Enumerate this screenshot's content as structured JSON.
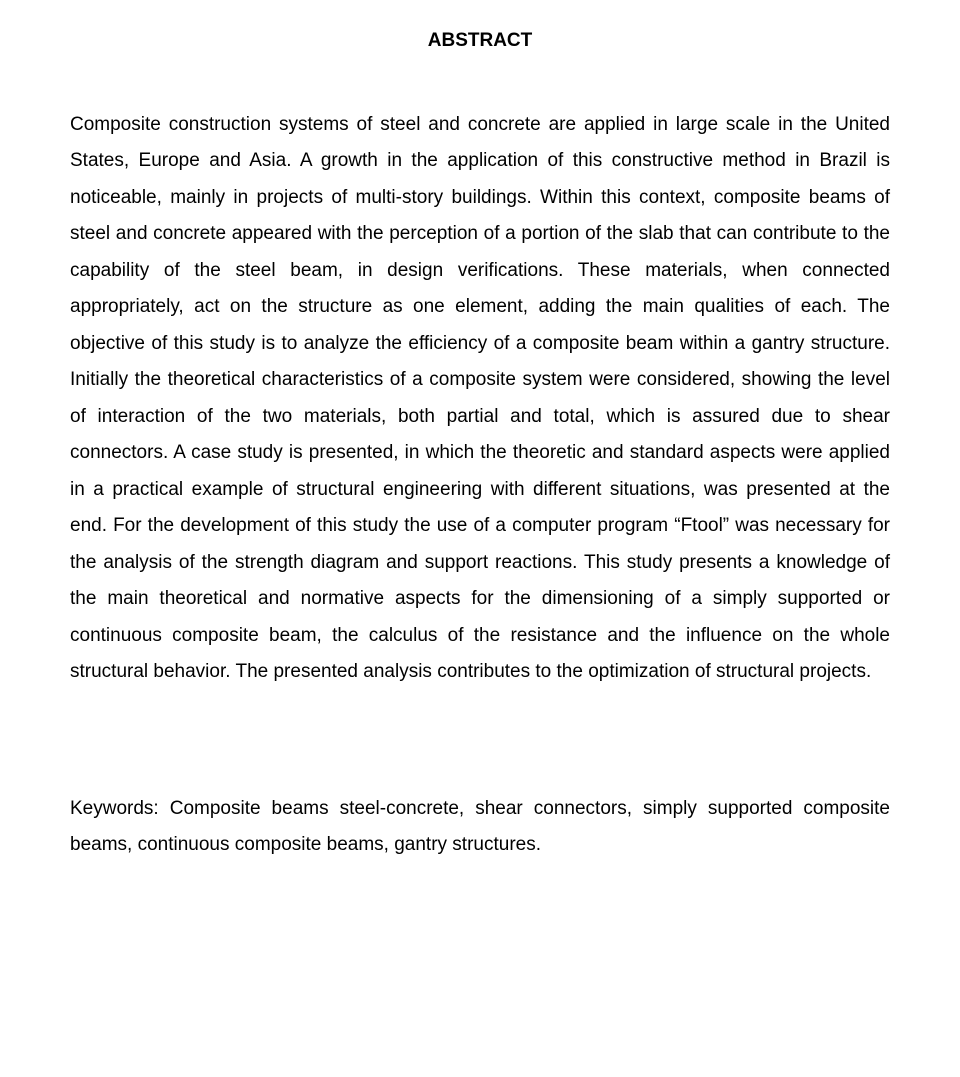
{
  "title": "ABSTRACT",
  "body": "Composite construction systems of steel and concrete are applied in large scale in the United States, Europe and Asia. A growth in the application of this constructive method in Brazil is noticeable, mainly in projects of multi-story buildings. Within this context, composite beams of steel and concrete appeared with the perception of a portion of the slab that can contribute to the capability of the steel beam, in design verifications. These materials, when connected appropriately, act on the structure as one element, adding the main qualities of each. The objective of this study is to analyze the efficiency of a composite beam within a gantry structure. Initially the theoretical characteristics of a composite system were considered, showing the level of interaction of the two materials, both partial and total, which is assured due to shear connectors. A case study is presented, in which the theoretic and standard aspects were applied in a practical example of structural engineering with different situations, was presented at the end. For the development of this study the use of a computer program “Ftool” was necessary for the analysis of the strength diagram and support reactions. This study presents a knowledge of the main theoretical and normative aspects for the dimensioning of a simply supported or continuous composite beam, the calculus of the resistance and the influence on the whole structural behavior. The presented analysis contributes to the optimization of structural projects.",
  "keywords": "Keywords: Composite beams steel-concrete, shear connectors, simply supported composite beams, continuous composite beams, gantry structures."
}
